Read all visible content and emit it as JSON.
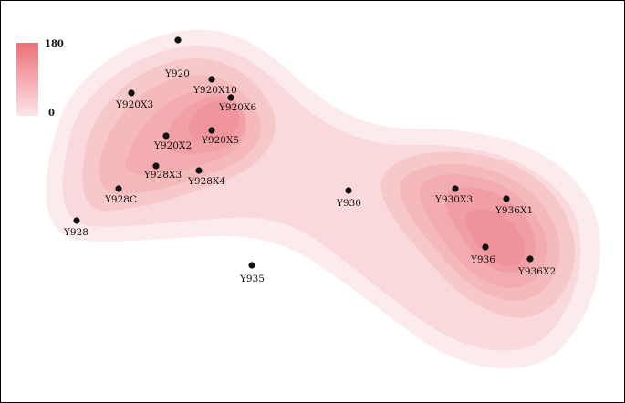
{
  "legend": {
    "max_label": "180",
    "min_label": "0",
    "color_high": "#eb6f78",
    "color_low": "#fbe6e7"
  },
  "wells": [
    {
      "name": "Y920"
    },
    {
      "name": "Y920X10"
    },
    {
      "name": "Y920X6"
    },
    {
      "name": "Y920X3"
    },
    {
      "name": "Y920X2"
    },
    {
      "name": "Y920X5"
    },
    {
      "name": "Y928X3"
    },
    {
      "name": "Y928X4"
    },
    {
      "name": "Y928C"
    },
    {
      "name": "Y928"
    },
    {
      "name": "Y930"
    },
    {
      "name": "Y935"
    },
    {
      "name": "Y930X3"
    },
    {
      "name": "Y936X1"
    },
    {
      "name": "Y936"
    },
    {
      "name": "Y936X2"
    }
  ]
}
